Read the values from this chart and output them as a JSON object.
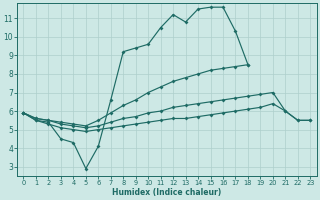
{
  "xlabel": "Humidex (Indice chaleur)",
  "xlim": [
    -0.5,
    23.5
  ],
  "ylim": [
    2.5,
    11.8
  ],
  "xticks": [
    0,
    1,
    2,
    3,
    4,
    5,
    6,
    7,
    8,
    9,
    10,
    11,
    12,
    13,
    14,
    15,
    16,
    17,
    18,
    19,
    20,
    21,
    22,
    23
  ],
  "yticks": [
    3,
    4,
    5,
    6,
    7,
    8,
    9,
    10,
    11
  ],
  "bg_color": "#cde8e5",
  "grid_color": "#aecfcc",
  "line_color": "#1e6b65",
  "lines": [
    {
      "x": [
        0,
        1,
        2,
        3,
        4,
        5,
        6,
        7,
        8,
        9,
        10,
        11,
        12,
        13,
        14,
        15,
        16,
        17,
        18
      ],
      "y": [
        5.9,
        5.5,
        5.4,
        4.5,
        4.3,
        2.9,
        4.1,
        6.6,
        9.2,
        9.4,
        9.6,
        10.5,
        11.2,
        10.8,
        11.5,
        11.6,
        11.6,
        10.3,
        8.5
      ]
    },
    {
      "x": [
        0,
        1,
        2,
        3,
        4,
        5,
        6,
        7,
        8,
        9,
        10,
        11,
        12,
        13,
        14,
        15,
        16,
        17,
        18
      ],
      "y": [
        5.9,
        5.6,
        5.5,
        5.4,
        5.3,
        5.2,
        5.5,
        5.9,
        6.3,
        6.6,
        7.0,
        7.3,
        7.6,
        7.8,
        8.0,
        8.2,
        8.3,
        8.4,
        8.5
      ]
    },
    {
      "x": [
        0,
        1,
        2,
        3,
        4,
        5,
        6,
        7,
        8,
        9,
        10,
        11,
        12,
        13,
        14,
        15,
        16,
        17,
        18,
        19,
        20,
        21,
        22,
        23
      ],
      "y": [
        5.9,
        5.6,
        5.5,
        5.3,
        5.2,
        5.1,
        5.2,
        5.4,
        5.6,
        5.7,
        5.9,
        6.0,
        6.2,
        6.3,
        6.4,
        6.5,
        6.6,
        6.7,
        6.8,
        6.9,
        7.0,
        6.0,
        5.5,
        5.5
      ]
    },
    {
      "x": [
        0,
        1,
        2,
        3,
        4,
        5,
        6,
        7,
        8,
        9,
        10,
        11,
        12,
        13,
        14,
        15,
        16,
        17,
        18,
        19,
        20,
        21,
        22,
        23
      ],
      "y": [
        5.9,
        5.5,
        5.3,
        5.1,
        5.0,
        4.9,
        5.0,
        5.1,
        5.2,
        5.3,
        5.4,
        5.5,
        5.6,
        5.6,
        5.7,
        5.8,
        5.9,
        6.0,
        6.1,
        6.2,
        6.4,
        6.0,
        5.5,
        5.5
      ]
    }
  ]
}
